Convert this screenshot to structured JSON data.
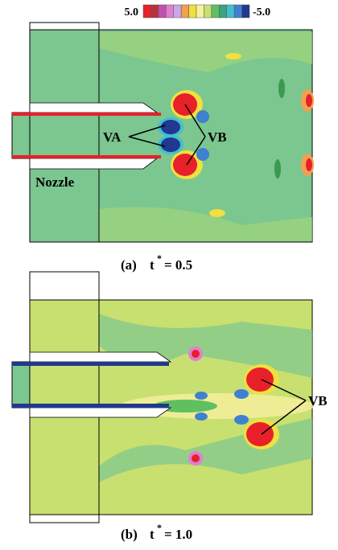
{
  "colorbar": {
    "colors": [
      "#e8202a",
      "#b8323c",
      "#c050b0",
      "#e080d0",
      "#c8a8e8",
      "#f0a050",
      "#f0e040",
      "#f8f0a0",
      "#c8e070",
      "#60c060",
      "#40a080",
      "#40c0d0",
      "#4080d0",
      "#203890"
    ],
    "ticks": [
      {
        "value": 5,
        "label": "5.0"
      },
      {
        "value": -5,
        "label": "-5.0"
      }
    ]
  },
  "panels": [
    {
      "labels": [
        "VA",
        "VB",
        "Nozzle"
      ],
      "caption": {
        "tag": "(a)",
        "var": "t",
        "sup": "*",
        "value": "= 0.5"
      }
    },
    {
      "labels": [
        "VB"
      ],
      "caption": {
        "tag": "(b)",
        "var": "t",
        "sup": "*",
        "value": "= 1.0"
      }
    }
  ]
}
